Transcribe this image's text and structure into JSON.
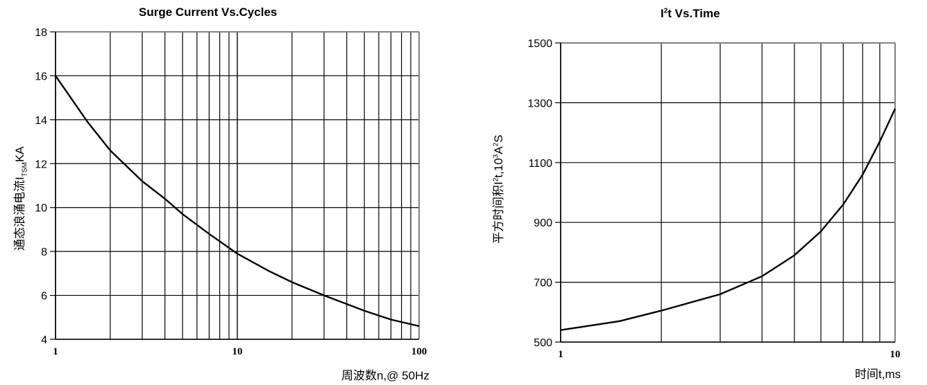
{
  "chart_data": [
    {
      "type": "line",
      "title": "Surge Current Vs.Cycles",
      "ylabel_main": "通态浪涌电流I",
      "ylabel_sub": "TSM",
      "ylabel_tail": "KA",
      "xlabel": "周波数n,@ 50Hz",
      "x_scale": "log",
      "xlim": [
        1,
        100
      ],
      "ylim": [
        4,
        18
      ],
      "x_ticks": [
        {
          "value": 1,
          "label": "1"
        },
        {
          "value": 10,
          "label": "10"
        },
        {
          "value": 100,
          "label": "100"
        }
      ],
      "y_ticks": [
        4,
        6,
        8,
        10,
        12,
        14,
        16,
        18
      ],
      "grid": true,
      "series": [
        {
          "x": [
            1,
            1.5,
            2,
            3,
            4,
            5,
            7,
            10,
            15,
            20,
            30,
            50,
            70,
            100
          ],
          "y": [
            16,
            13.9,
            12.6,
            11.2,
            10.4,
            9.7,
            8.8,
            7.9,
            7.1,
            6.6,
            6.0,
            5.3,
            4.9,
            4.6
          ]
        }
      ]
    },
    {
      "type": "line",
      "title_pre": "I",
      "title_sup": "2",
      "title_post": "t  Vs.Time",
      "ylabel_pre": "平方时间积I",
      "ylabel_sup": "2",
      "ylabel_mid": "t,10",
      "ylabel_sup2": "3",
      "ylabel_post": "A",
      "ylabel_sup3": "2",
      "ylabel_tail": "S",
      "xlabel": "时间t,ms",
      "x_scale": "log",
      "xlim": [
        1,
        10
      ],
      "ylim": [
        500,
        1500
      ],
      "x_ticks": [
        {
          "value": 1,
          "label": "1"
        },
        {
          "value": 10,
          "label": "10"
        }
      ],
      "y_ticks": [
        500,
        700,
        900,
        1100,
        1300,
        1500
      ],
      "grid": true,
      "series": [
        {
          "x": [
            1,
            1.5,
            2,
            3,
            4,
            5,
            6,
            7,
            8,
            9,
            10
          ],
          "y": [
            540,
            570,
            605,
            660,
            720,
            790,
            870,
            960,
            1060,
            1170,
            1280
          ]
        }
      ]
    }
  ]
}
